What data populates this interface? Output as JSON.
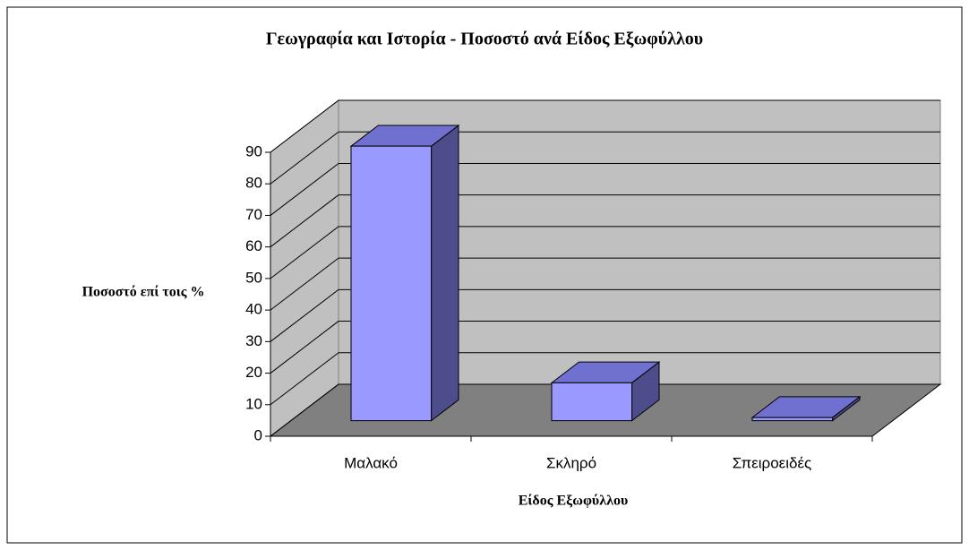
{
  "chart_data": {
    "type": "bar3d",
    "title": "Γεωγραφία και Ιστορία - Ποσοστό ανά Είδος Εξωφύλλου",
    "x_label": "Είδος Εξωφύλλου",
    "y_label": "Ποσοστό επί τοις %",
    "categories": [
      "Μαλακό",
      "Σκληρό",
      "Σπειροειδές"
    ],
    "values": [
      87,
      12,
      1
    ],
    "color": "#9999ff",
    "ylim": [
      0,
      90
    ],
    "yticks": [
      0,
      10,
      20,
      30,
      40,
      50,
      60,
      70,
      80,
      90
    ],
    "grid": true
  }
}
